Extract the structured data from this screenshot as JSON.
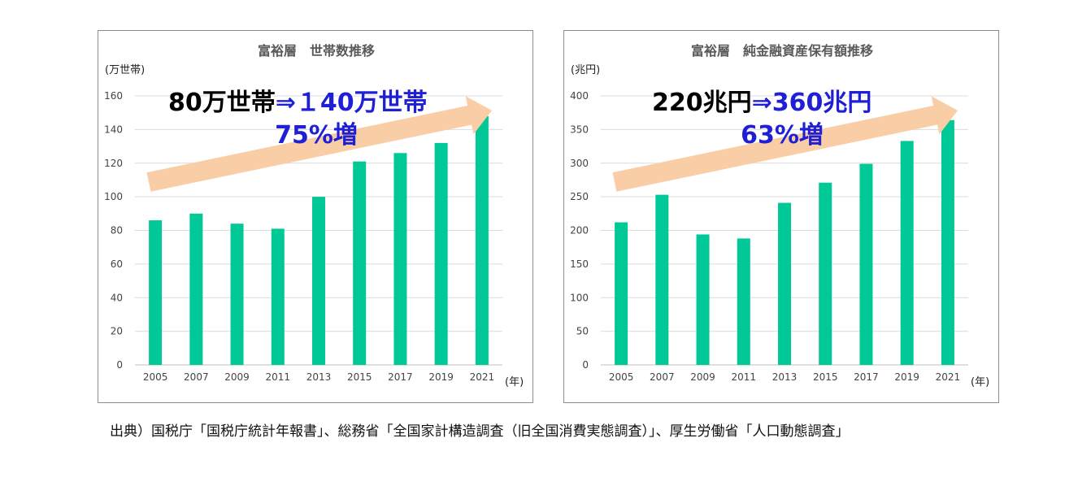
{
  "chart_data": [
    {
      "type": "bar",
      "title": "富裕層　世帯数推移",
      "ylabel": "(万世帯)",
      "xlabel": "(年)",
      "categories": [
        "2005",
        "2007",
        "2009",
        "2011",
        "2013",
        "2015",
        "2017",
        "2019",
        "2021"
      ],
      "values": [
        86,
        90,
        84,
        81,
        100,
        121,
        126,
        132,
        148
      ],
      "ylim": [
        0,
        160
      ],
      "yticks": [
        "0",
        "20",
        "40",
        "60",
        "80",
        "100",
        "120",
        "140",
        "160"
      ],
      "grid": true,
      "bar_color": "#00c896",
      "arrow_color": "#f9cda5",
      "annotation": {
        "from": "80万世帯",
        "to": "⇒１40万世帯",
        "change": "75%増",
        "from_color": "#000000",
        "to_color": "#1f1fd6"
      }
    },
    {
      "type": "bar",
      "title": "富裕層　純金融資産保有額推移",
      "ylabel": "(兆円)",
      "xlabel": "(年)",
      "categories": [
        "2005",
        "2007",
        "2009",
        "2011",
        "2013",
        "2015",
        "2017",
        "2019",
        "2021"
      ],
      "values": [
        212,
        253,
        194,
        188,
        241,
        271,
        299,
        333,
        364
      ],
      "ylim": [
        0,
        400
      ],
      "yticks": [
        "0",
        "50",
        "100",
        "150",
        "200",
        "250",
        "300",
        "350",
        "400"
      ],
      "grid": true,
      "bar_color": "#00c896",
      "arrow_color": "#f9cda5",
      "annotation": {
        "from": "220兆円",
        "to": "⇒360兆円",
        "change": "63%増",
        "from_color": "#000000",
        "to_color": "#1f1fd6"
      }
    }
  ],
  "source": "出典）国税庁「国税庁統計年報書」、総務省「全国家計構造調査（旧全国消費実態調査）」、厚生労働省「人口動態調査」"
}
